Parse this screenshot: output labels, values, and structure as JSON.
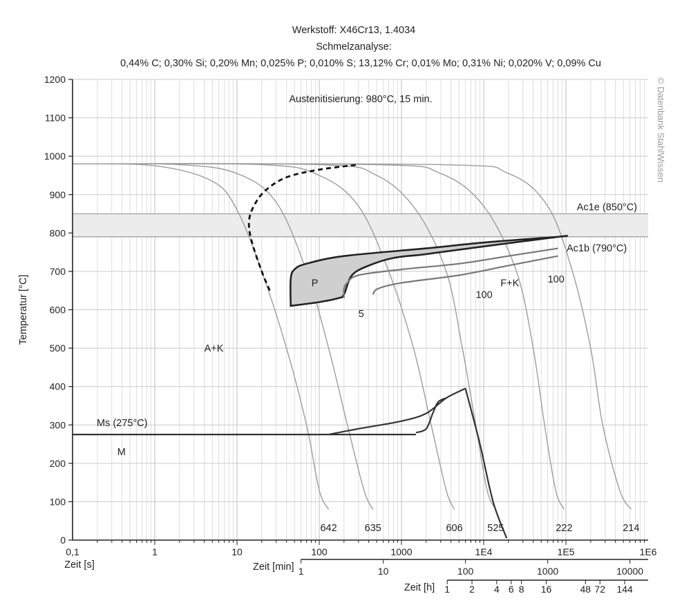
{
  "header": {
    "line1": "Werkstoff: X46Cr13, 1.4034",
    "line2": "Schmelzanalyse:",
    "line3": "0,44% C; 0,30% Si; 0,20% Mn; 0,025% P; 0,010% S; 13,12% Cr; 0,01% Mo; 0,31% Ni; 0,020% V; 0,09% Cu"
  },
  "copyright": "© Datenbank StahlWissen",
  "chart_data": {
    "type": "line",
    "title": "Werkstoff: X46Cr13, 1.4034",
    "xscale": "log",
    "xlim": [
      0.1,
      1000000
    ],
    "ylim": [
      0,
      1200
    ],
    "ylabel": "Temperatur [°C]",
    "grid": true,
    "austenitization": "Austenitisierung: 980°C, 15 min.",
    "y_ticks": [
      "0",
      "100",
      "200",
      "300",
      "400",
      "500",
      "600",
      "700",
      "800",
      "900",
      "1000",
      "1100",
      "1200"
    ],
    "axes": [
      {
        "name": "seconds",
        "label": "Zeit [s]",
        "ticks": [
          {
            "v": 0.1,
            "t": "0,1"
          },
          {
            "v": 1,
            "t": "1"
          },
          {
            "v": 10,
            "t": "10"
          },
          {
            "v": 100,
            "t": "100"
          },
          {
            "v": 1000,
            "t": "1000"
          },
          {
            "v": 10000,
            "t": "1E4"
          },
          {
            "v": 100000,
            "t": "1E5"
          },
          {
            "v": 1000000,
            "t": "1E6"
          }
        ]
      },
      {
        "name": "minutes",
        "label": "Zeit [min]",
        "line_from": 60,
        "line_to": 1000000,
        "ticks": [
          {
            "v": 60,
            "t": "1"
          },
          {
            "v": 600,
            "t": "10"
          },
          {
            "v": 6000,
            "t": "100"
          },
          {
            "v": 60000,
            "t": "1000"
          },
          {
            "v": 600000,
            "t": "10000"
          }
        ]
      },
      {
        "name": "hours",
        "label": "Zeit [h]",
        "line_from": 3600,
        "line_to": 1000000,
        "ticks": [
          {
            "v": 3600,
            "t": "1"
          },
          {
            "v": 7200,
            "t": "2"
          },
          {
            "v": 14400,
            "t": "4"
          },
          {
            "v": 21600,
            "t": "6"
          },
          {
            "v": 28800,
            "t": "8"
          },
          {
            "v": 57600,
            "t": "16"
          },
          {
            "v": 172800,
            "t": "48"
          },
          {
            "v": 259200,
            "t": "72"
          },
          {
            "v": 518400,
            "t": "144"
          }
        ]
      }
    ],
    "reference_lines": [
      {
        "name": "Ac1e",
        "label": "Ac1e (850°C)",
        "y": 850
      },
      {
        "name": "Ac1b",
        "label": "Ac1b (790°C)",
        "y": 790
      },
      {
        "name": "Ms",
        "label": "Ms (275°C)",
        "y": 275
      }
    ],
    "cooling_curves": [
      {
        "hardness": "642",
        "points": [
          [
            0.1,
            980
          ],
          [
            1,
            975
          ],
          [
            5,
            935
          ],
          [
            10,
            860
          ],
          [
            20,
            700
          ],
          [
            40,
            500
          ],
          [
            70,
            300
          ],
          [
            100,
            130
          ],
          [
            130,
            80
          ]
        ]
      },
      {
        "hardness": "635",
        "points": [
          [
            0.1,
            980
          ],
          [
            2,
            978
          ],
          [
            10,
            955
          ],
          [
            30,
            880
          ],
          [
            70,
            700
          ],
          [
            130,
            500
          ],
          [
            220,
            300
          ],
          [
            350,
            130
          ],
          [
            450,
            80
          ]
        ]
      },
      {
        "hardness": "606",
        "points": [
          [
            0.1,
            980
          ],
          [
            20,
            978
          ],
          [
            100,
            950
          ],
          [
            300,
            870
          ],
          [
            700,
            700
          ],
          [
            1400,
            500
          ],
          [
            2300,
            300
          ],
          [
            3500,
            130
          ],
          [
            4400,
            80
          ]
        ]
      },
      {
        "hardness": "525",
        "points": [
          [
            0.1,
            980
          ],
          [
            100,
            978
          ],
          [
            500,
            950
          ],
          [
            1500,
            860
          ],
          [
            3500,
            700
          ],
          [
            5500,
            500
          ],
          [
            8000,
            300
          ],
          [
            11000,
            130
          ],
          [
            14000,
            80
          ]
        ]
      },
      {
        "hardness": "222",
        "points": [
          [
            0.1,
            980
          ],
          [
            500,
            978
          ],
          [
            3000,
            955
          ],
          [
            10000,
            870
          ],
          [
            25000,
            700
          ],
          [
            40000,
            500
          ],
          [
            55000,
            300
          ],
          [
            75000,
            130
          ],
          [
            95000,
            80
          ]
        ]
      },
      {
        "hardness": "214",
        "points": [
          [
            0.1,
            980
          ],
          [
            3000,
            978
          ],
          [
            20000,
            955
          ],
          [
            60000,
            870
          ],
          [
            120000,
            700
          ],
          [
            200000,
            500
          ],
          [
            280000,
            300
          ],
          [
            450000,
            130
          ],
          [
            620000,
            80
          ]
        ]
      }
    ],
    "carbide_precipitation_start": [
      [
        25,
        650
      ],
      [
        20,
        700
      ],
      [
        15,
        780
      ],
      [
        14,
        830
      ],
      [
        16,
        870
      ],
      [
        22,
        910
      ],
      [
        40,
        945
      ],
      [
        100,
        965
      ],
      [
        300,
        978
      ]
    ],
    "pearlite_region": {
      "label": "P",
      "points": [
        [
          45,
          610
        ],
        [
          45,
          680
        ],
        [
          50,
          705
        ],
        [
          70,
          720
        ],
        [
          200,
          740
        ],
        [
          2000,
          760
        ],
        [
          10000,
          775
        ],
        [
          80000,
          790
        ],
        [
          80000,
          790
        ],
        [
          10000,
          765
        ],
        [
          2000,
          745
        ],
        [
          800,
          735
        ],
        [
          400,
          715
        ],
        [
          250,
          690
        ],
        [
          200,
          640
        ],
        [
          170,
          630
        ],
        [
          100,
          620
        ],
        [
          45,
          610
        ]
      ]
    },
    "transformation_curves": [
      {
        "label": "5",
        "points": [
          [
            200,
            630
          ],
          [
            200,
            655
          ],
          [
            220,
            670
          ],
          [
            300,
            690
          ],
          [
            1000,
            705
          ],
          [
            5000,
            720
          ],
          [
            20000,
            740
          ],
          [
            80000,
            760
          ]
        ]
      },
      {
        "label": "100",
        "points": [
          [
            450,
            640
          ],
          [
            520,
            655
          ],
          [
            1000,
            670
          ],
          [
            5000,
            690
          ],
          [
            20000,
            715
          ],
          [
            80000,
            740
          ]
        ]
      }
    ],
    "bainite_curves": [
      {
        "points": [
          [
            130,
            275
          ],
          [
            300,
            290
          ],
          [
            1000,
            310
          ],
          [
            2000,
            330
          ],
          [
            3500,
            370
          ],
          [
            6000,
            395
          ]
        ]
      },
      {
        "points": [
          [
            1500,
            280
          ],
          [
            2000,
            290
          ],
          [
            2400,
            330
          ],
          [
            2800,
            360
          ],
          [
            3500,
            370
          ]
        ]
      },
      {
        "points": [
          [
            6000,
            395
          ],
          [
            9000,
            250
          ],
          [
            13000,
            100
          ],
          [
            19000,
            5
          ]
        ]
      }
    ],
    "region_labels": [
      {
        "text": "A+K",
        "x": 4,
        "y": 500
      },
      {
        "text": "M",
        "x": 0.35,
        "y": 230
      },
      {
        "text": "F+K",
        "x": 16000,
        "y": 670
      },
      {
        "text": "100",
        "x": 8000,
        "y": 640
      },
      {
        "text": "100",
        "x": 60000,
        "y": 680
      },
      {
        "text": "5",
        "x": 300,
        "y": 590
      }
    ]
  }
}
